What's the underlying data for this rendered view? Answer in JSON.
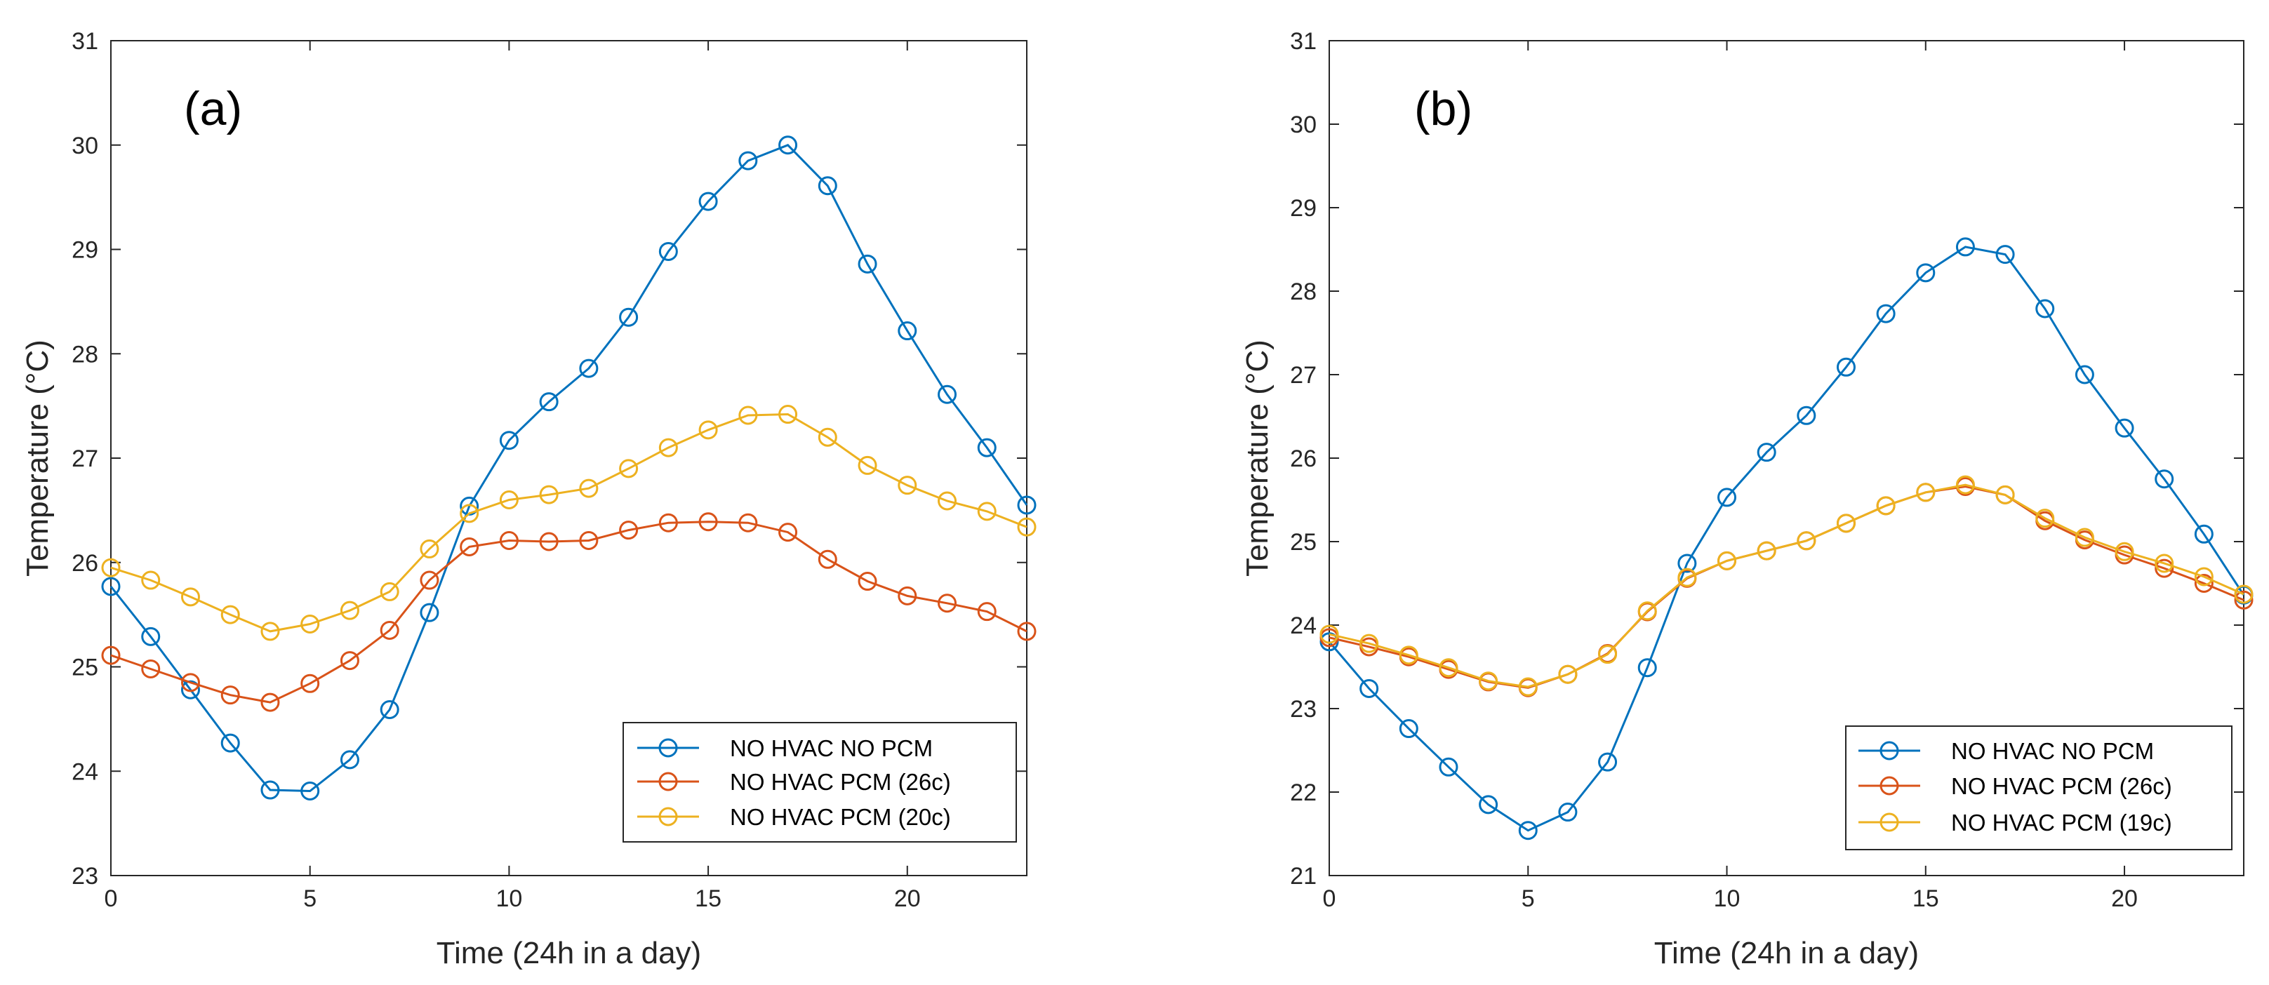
{
  "chart_data": [
    {
      "type": "line",
      "panel_label": "(a)",
      "xlabel": "Time (24h in a day)",
      "ylabel": "Temperature (°C)",
      "xlim": [
        0,
        23
      ],
      "ylim": [
        23,
        31
      ],
      "xticks": [
        0,
        5,
        10,
        15,
        20
      ],
      "yticks": [
        23,
        24,
        25,
        26,
        27,
        28,
        29,
        30,
        31
      ],
      "grid": false,
      "legend_position": "bottom-right",
      "x": [
        0,
        1,
        2,
        3,
        4,
        5,
        6,
        7,
        8,
        9,
        10,
        11,
        12,
        13,
        14,
        15,
        16,
        17,
        18,
        19,
        20,
        21,
        22,
        23
      ],
      "series": [
        {
          "name": "NO HVAC NO PCM",
          "color": "#0072BD",
          "marker": "circle",
          "values": [
            25.77,
            25.29,
            24.78,
            24.27,
            23.82,
            23.81,
            24.11,
            24.59,
            25.52,
            26.54,
            27.17,
            27.54,
            27.86,
            28.35,
            28.98,
            29.46,
            29.85,
            30.0,
            29.61,
            28.86,
            28.22,
            27.61,
            27.1,
            26.55
          ]
        },
        {
          "name": "NO HVAC PCM (26c)",
          "color": "#D95319",
          "marker": "circle",
          "values": [
            25.11,
            24.98,
            24.85,
            24.73,
            24.66,
            24.84,
            25.06,
            25.35,
            25.83,
            26.15,
            26.21,
            26.2,
            26.21,
            26.31,
            26.38,
            26.39,
            26.38,
            26.29,
            26.03,
            25.82,
            25.68,
            25.61,
            25.53,
            25.34
          ]
        },
        {
          "name": "NO HVAC PCM (20c)",
          "color": "#EDB120",
          "marker": "circle",
          "values": [
            25.95,
            25.83,
            25.67,
            25.5,
            25.34,
            25.41,
            25.54,
            25.72,
            26.13,
            26.47,
            26.6,
            26.65,
            26.71,
            26.9,
            27.1,
            27.27,
            27.41,
            27.42,
            27.2,
            26.93,
            26.74,
            26.59,
            26.49,
            26.34
          ]
        }
      ]
    },
    {
      "type": "line",
      "panel_label": "(b)",
      "xlabel": "Time (24h in a day)",
      "ylabel": "Temperature (°C)",
      "xlim": [
        0,
        23
      ],
      "ylim": [
        21,
        31
      ],
      "xticks": [
        0,
        5,
        10,
        15,
        20
      ],
      "yticks": [
        21,
        22,
        23,
        24,
        25,
        26,
        27,
        28,
        29,
        30,
        31
      ],
      "grid": false,
      "legend_position": "bottom-right",
      "x": [
        0,
        1,
        2,
        3,
        4,
        5,
        6,
        7,
        8,
        9,
        10,
        11,
        12,
        13,
        14,
        15,
        16,
        17,
        18,
        19,
        20,
        21,
        22,
        23
      ],
      "series": [
        {
          "name": "NO HVAC NO PCM",
          "color": "#0072BD",
          "marker": "circle",
          "values": [
            23.8,
            23.24,
            22.76,
            22.3,
            21.85,
            21.54,
            21.76,
            22.36,
            23.49,
            24.74,
            25.53,
            26.07,
            26.51,
            27.09,
            27.73,
            28.22,
            28.53,
            28.44,
            27.79,
            27.0,
            26.36,
            25.75,
            25.09,
            24.36
          ]
        },
        {
          "name": "NO HVAC PCM (26c)",
          "color": "#D95319",
          "marker": "circle",
          "values": [
            23.85,
            23.74,
            23.62,
            23.47,
            23.32,
            23.25,
            23.41,
            23.66,
            24.16,
            24.56,
            24.77,
            24.89,
            25.01,
            25.22,
            25.43,
            25.59,
            25.66,
            25.56,
            25.25,
            25.02,
            24.84,
            24.68,
            24.5,
            24.3
          ]
        },
        {
          "name": "NO HVAC PCM (19c)",
          "color": "#EDB120",
          "marker": "circle",
          "values": [
            23.89,
            23.78,
            23.64,
            23.49,
            23.33,
            23.26,
            23.41,
            23.65,
            24.17,
            24.57,
            24.77,
            24.89,
            25.01,
            25.22,
            25.43,
            25.59,
            25.68,
            25.56,
            25.28,
            25.05,
            24.88,
            24.74,
            24.58,
            24.37
          ]
        }
      ]
    }
  ]
}
